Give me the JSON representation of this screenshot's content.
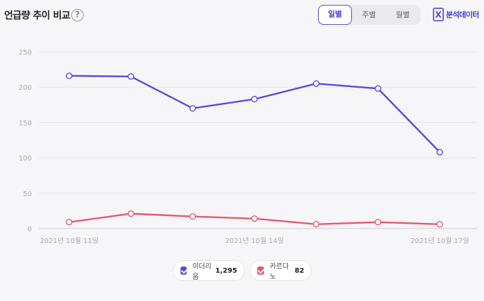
{
  "header": {
    "title": "언급량 추이 비교",
    "help_glyph": "?",
    "tabs": [
      {
        "label": "일별",
        "active": true
      },
      {
        "label": "주별",
        "active": false
      },
      {
        "label": "월별",
        "active": false
      }
    ],
    "export_label": "분석데이터"
  },
  "colors": {
    "series1": "#5b47dd",
    "series2": "#e8566e",
    "accent": "#4a3cc8"
  },
  "chart_data": {
    "type": "line",
    "x": [
      "2021-10-11",
      "2021-10-12",
      "2021-10-13",
      "2021-10-14",
      "2021-10-15",
      "2021-10-16",
      "2021-10-17"
    ],
    "x_tick_labels": [
      "2021년 10월 11일",
      "2021년 10월 14일",
      "2021년 10월 17일"
    ],
    "y_ticks": [
      "250",
      "200",
      "150",
      "100",
      "50",
      "0"
    ],
    "ylim": [
      0,
      250
    ],
    "grid": true,
    "legend_position": "bottom",
    "series": [
      {
        "name": "이더리움",
        "total": "1,295",
        "values": [
          216,
          215,
          170,
          183,
          205,
          198,
          108
        ]
      },
      {
        "name": "카르다노",
        "total": "82",
        "values": [
          9,
          21,
          17,
          14,
          6,
          9,
          6
        ]
      }
    ]
  }
}
